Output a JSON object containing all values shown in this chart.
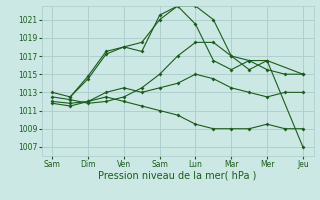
{
  "xlabel": "Pression niveau de la mer( hPa )",
  "xtick_labels": [
    "Sam",
    "Dim",
    "Ven",
    "Sam",
    "Lun",
    "Mar",
    "Mer",
    "Jeu"
  ],
  "ylim": [
    1006.0,
    1022.5
  ],
  "yticks": [
    1007,
    1009,
    1011,
    1013,
    1015,
    1017,
    1019,
    1021
  ],
  "bg_color": "#cce8e4",
  "grid_color": "#aacccc",
  "line_color": "#1a5c1a",
  "lines": [
    {
      "x": [
        0,
        0.5,
        1,
        1.5,
        2,
        2.5,
        3,
        3.5,
        4,
        4.5,
        5,
        5.5,
        6,
        6.5,
        7
      ],
      "y": [
        1012.5,
        1012.2,
        1011.8,
        1012.0,
        1012.5,
        1013.5,
        1015.0,
        1017.0,
        1018.5,
        1018.5,
        1017.0,
        1016.5,
        1015.5,
        1015.0,
        1015.0
      ]
    },
    {
      "x": [
        0,
        0.5,
        1,
        1.5,
        2,
        2.5,
        3,
        3.5,
        4,
        4.5,
        5,
        5.5,
        6,
        6.5,
        7
      ],
      "y": [
        1012.0,
        1011.8,
        1012.0,
        1013.0,
        1013.5,
        1013.0,
        1013.5,
        1014.0,
        1015.0,
        1014.5,
        1013.5,
        1013.0,
        1012.5,
        1013.0,
        1013.0
      ]
    },
    {
      "x": [
        0,
        0.5,
        1,
        1.5,
        2,
        2.5,
        3,
        3.5,
        4,
        4.5,
        5,
        5.5,
        6,
        6.5,
        7
      ],
      "y": [
        1011.8,
        1011.5,
        1012.0,
        1012.5,
        1012.0,
        1011.5,
        1011.0,
        1010.5,
        1009.5,
        1009.0,
        1009.0,
        1009.0,
        1009.5,
        1009.0,
        1009.0
      ]
    },
    {
      "x": [
        0,
        0.5,
        1,
        1.5,
        2,
        2.5,
        3,
        3.5,
        4,
        4.5,
        5,
        5.5,
        6,
        7
      ],
      "y": [
        1013.0,
        1012.5,
        1014.5,
        1017.2,
        1018.0,
        1018.5,
        1021.0,
        1022.5,
        1022.5,
        1021.0,
        1017.0,
        1015.5,
        1016.5,
        1015.0
      ]
    },
    {
      "x": [
        0.5,
        1,
        1.5,
        2,
        2.5,
        3,
        3.5,
        4,
        4.5,
        5,
        5.5,
        6,
        7
      ],
      "y": [
        1012.5,
        1014.8,
        1017.5,
        1018.0,
        1017.5,
        1021.5,
        1022.5,
        1020.5,
        1016.5,
        1015.5,
        1016.5,
        1016.5,
        1007.0
      ]
    }
  ]
}
